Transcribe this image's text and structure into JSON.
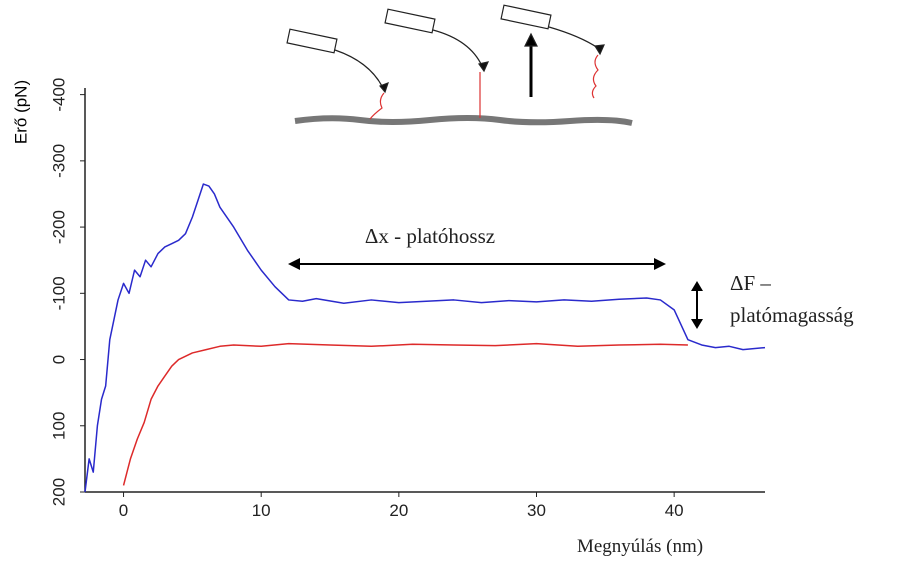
{
  "chart_data": {
    "type": "line",
    "x_label": "Megnyúlás (nm)",
    "y_label": "Erő (pN)",
    "annotations": [
      "Δx - platóhossz",
      "ΔF –",
      "platómagasság"
    ],
    "xlim": [
      -2.8,
      46.6
    ],
    "xticks": [
      0,
      10,
      20,
      30,
      40
    ],
    "ylim": [
      200,
      -410
    ],
    "yticks": [
      -400,
      -300,
      -200,
      -100,
      0,
      100,
      200
    ],
    "series": [
      {
        "color": "#2a2acc",
        "x": [
          -2.8,
          -2.5,
          -2.2,
          -1.9,
          -1.6,
          -1.3,
          -1,
          -0.7,
          -0.4,
          0,
          0.4,
          0.8,
          1.2,
          1.6,
          2,
          2.5,
          3,
          3.5,
          4,
          4.5,
          5,
          5.4,
          5.8,
          6.2,
          6.6,
          7,
          8,
          9,
          10,
          11,
          12,
          13,
          14,
          16,
          18,
          20,
          22,
          24,
          26,
          28,
          30,
          32,
          34,
          36,
          38,
          39,
          40,
          41,
          42,
          43,
          44,
          45,
          46.6
        ],
        "values": [
          200,
          150,
          170,
          100,
          60,
          40,
          -30,
          -60,
          -90,
          -115,
          -100,
          -135,
          -125,
          -150,
          -140,
          -160,
          -170,
          -175,
          -180,
          -190,
          -215,
          -240,
          -265,
          -262,
          -250,
          -230,
          -200,
          -165,
          -135,
          -110,
          -90,
          -88,
          -92,
          -85,
          -90,
          -86,
          -88,
          -90,
          -86,
          -89,
          -87,
          -90,
          -88,
          -91,
          -93,
          -90,
          -75,
          -30,
          -22,
          -18,
          -20,
          -15,
          -18
        ]
      },
      {
        "color": "#dd2a2a",
        "x": [
          0,
          0.5,
          1,
          1.5,
          2,
          2.5,
          3,
          3.5,
          4,
          5,
          6,
          7,
          8,
          10,
          12,
          15,
          18,
          21,
          24,
          27,
          30,
          33,
          36,
          39,
          41
        ],
        "values": [
          190,
          150,
          120,
          95,
          60,
          40,
          25,
          10,
          0,
          -10,
          -15,
          -20,
          -22,
          -20,
          -24,
          -22,
          -20,
          -23,
          -22,
          -21,
          -24,
          -20,
          -22,
          -23,
          -22
        ]
      }
    ]
  }
}
